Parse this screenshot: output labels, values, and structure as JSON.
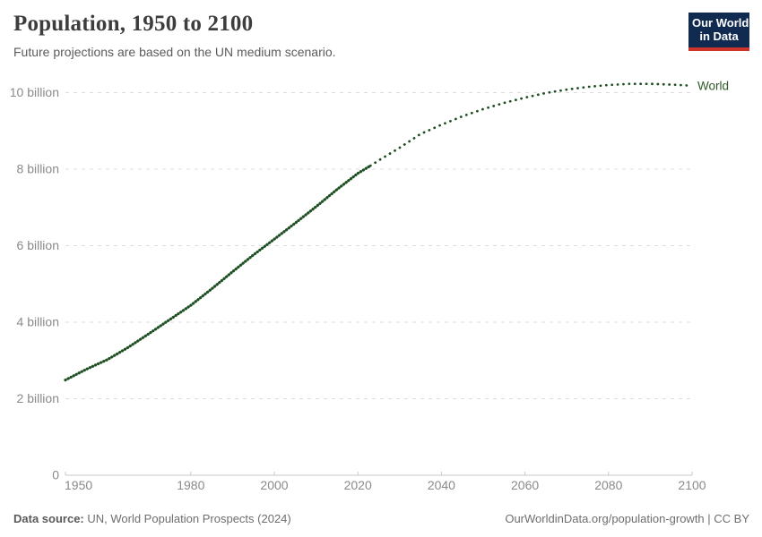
{
  "header": {
    "title": "Population, 1950 to 2100",
    "subtitle": "Future projections are based on the UN medium scenario.",
    "logo": {
      "line1": "Our World",
      "line2": "in Data"
    }
  },
  "footer": {
    "source_label": "Data source:",
    "source_text": " UN, World Population Prospects (2024)",
    "link_text": "OurWorldinData.org/population-growth | CC BY"
  },
  "colors": {
    "line_green": "#1d4e21",
    "label_green": "#2d5a27",
    "logo_navy": "#102a50",
    "logo_red": "#cf342b",
    "gridline": "#dcdcdc",
    "axis": "#c9c9c9",
    "tick_text": "#8a8a8a",
    "title_text": "#3d3d3d",
    "subtitle_text": "#5b5b5b",
    "footer_text": "#6e6e6e"
  },
  "chart_data": {
    "type": "line",
    "title": "Population, 1950 to 2100",
    "subtitle": "Future projections are based on the UN medium scenario.",
    "xlabel": "",
    "ylabel": "",
    "xlim": [
      1950,
      2100
    ],
    "ylim": [
      0,
      10.5
    ],
    "grid": "horizontal-dashed",
    "legend_position": "line-end-label",
    "series_label": "World",
    "x_ticks": [
      1950,
      1980,
      2000,
      2020,
      2040,
      2060,
      2080,
      2100
    ],
    "y_ticks": [
      {
        "label": "0",
        "value": 0
      },
      {
        "label": "2 billion",
        "value": 2
      },
      {
        "label": "4 billion",
        "value": 4
      },
      {
        "label": "6 billion",
        "value": 6
      },
      {
        "label": "8 billion",
        "value": 8
      },
      {
        "label": "10 billion",
        "value": 10
      }
    ],
    "unit": "billion people",
    "series": [
      {
        "name": "World (estimates)",
        "segment": "historical",
        "style": "dense-dotted",
        "x": [
          1950,
          1955,
          1960,
          1965,
          1970,
          1975,
          1980,
          1985,
          1990,
          1995,
          2000,
          2005,
          2010,
          2015,
          2020,
          2023
        ],
        "values": [
          2.49,
          2.77,
          3.02,
          3.34,
          3.7,
          4.07,
          4.44,
          4.87,
          5.32,
          5.76,
          6.17,
          6.59,
          7.02,
          7.47,
          7.89,
          8.09
        ]
      },
      {
        "name": "World (UN medium projection)",
        "segment": "projection",
        "style": "sparse-dotted",
        "x": [
          2023,
          2025,
          2030,
          2035,
          2040,
          2045,
          2050,
          2055,
          2060,
          2065,
          2070,
          2075,
          2080,
          2085,
          2090,
          2095,
          2100
        ],
        "values": [
          8.09,
          8.23,
          8.56,
          8.92,
          9.16,
          9.38,
          9.57,
          9.73,
          9.87,
          9.99,
          10.08,
          10.15,
          10.2,
          10.23,
          10.23,
          10.21,
          10.18
        ]
      }
    ]
  }
}
